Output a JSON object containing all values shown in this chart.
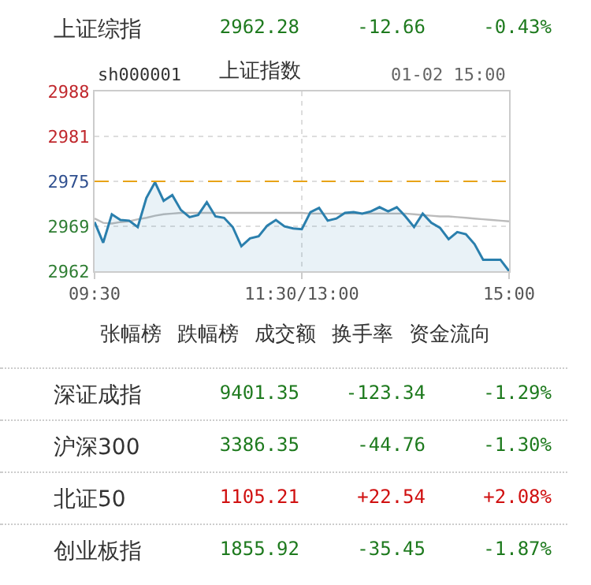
{
  "chart_data": {
    "type": "area",
    "title": "上证指数",
    "categories": [
      "09:30",
      null,
      null,
      null,
      null,
      null,
      null,
      null,
      null,
      null,
      null,
      null,
      null,
      null,
      null,
      null,
      null,
      null,
      null,
      null,
      null,
      null,
      null,
      null,
      "11:30/13:00",
      null,
      null,
      null,
      null,
      null,
      null,
      null,
      null,
      null,
      null,
      null,
      null,
      null,
      null,
      null,
      null,
      null,
      null,
      null,
      null,
      null,
      null,
      null,
      "15:00"
    ],
    "series": [
      {
        "color": "#2a7fad",
        "values": [
          2969.2,
          2966.3,
          2970.3,
          2969.5,
          2969.4,
          2968.5,
          2972.6,
          2974.8,
          2972.2,
          2973.0,
          2970.9,
          2969.9,
          2970.2,
          2972.0,
          2970.0,
          2969.8,
          2968.5,
          2965.8,
          2966.9,
          2967.2,
          2968.7,
          2969.5,
          2968.6,
          2968.3,
          2968.2,
          2970.6,
          2971.2,
          2969.4,
          2969.7,
          2970.5,
          2970.6,
          2970.4,
          2970.7,
          2971.3,
          2970.7,
          2971.3,
          2970.0,
          2968.5,
          2970.4,
          2969.1,
          2968.4,
          2966.8,
          2967.8,
          2967.5,
          2966.1,
          2963.9,
          2963.9,
          2963.9,
          2962.3
        ]
      },
      {
        "type": "line",
        "color": "#bbbbbb",
        "values": [
          2969.7,
          2969.1,
          2969.0,
          2969.2,
          2969.3,
          2969.6,
          2969.8,
          2970.1,
          2970.3,
          2970.4,
          2970.5,
          2970.5,
          2970.5,
          2970.5,
          2970.5,
          2970.5,
          2970.5,
          2970.5,
          2970.5,
          2970.5,
          2970.5,
          2970.5,
          2970.5,
          2970.5,
          2970.5,
          2970.4,
          2970.4,
          2970.4,
          2970.4,
          2970.4,
          2970.4,
          2970.4,
          2970.4,
          2970.4,
          2970.4,
          2970.4,
          2970.4,
          2970.3,
          2970.2,
          2970.1,
          2970.0,
          2970.0,
          2969.9,
          2969.8,
          2969.7,
          2969.6,
          2969.5,
          2969.4,
          2969.3
        ]
      }
    ],
    "ylim": [
      2962.28,
      2987.6
    ],
    "yticks": [
      {
        "value": 2962.28,
        "label": "2962"
      },
      {
        "value": 2968.61,
        "label": "2969"
      },
      {
        "value": 2974.94,
        "label": "2975"
      },
      {
        "value": 2981.27,
        "label": "2981"
      },
      {
        "value": 2987.6,
        "label": "2988"
      }
    ],
    "ref_lines": [
      {
        "axis": "y",
        "value": 2974.94,
        "color": "#e8a317",
        "line_style": "dashed"
      }
    ],
    "grid": true,
    "marker": "none",
    "line_style": "solid",
    "annotations": [
      "上证综指",
      "2962.28",
      "-12.66",
      "-0.43%",
      "sh000001",
      "01-02 15:00",
      "张幅榜",
      "跌幅榜",
      "成交额",
      "换手率",
      "资金流向",
      "深证成指",
      "9401.35",
      "-123.34",
      "-1.29%",
      "沪深300",
      "3386.35",
      "-44.76",
      "-1.30%",
      "北证50",
      "1105.21",
      "+22.54",
      "+2.08%",
      "创业板指",
      "1855.92",
      "-35.45",
      "-1.87%"
    ]
  }
}
